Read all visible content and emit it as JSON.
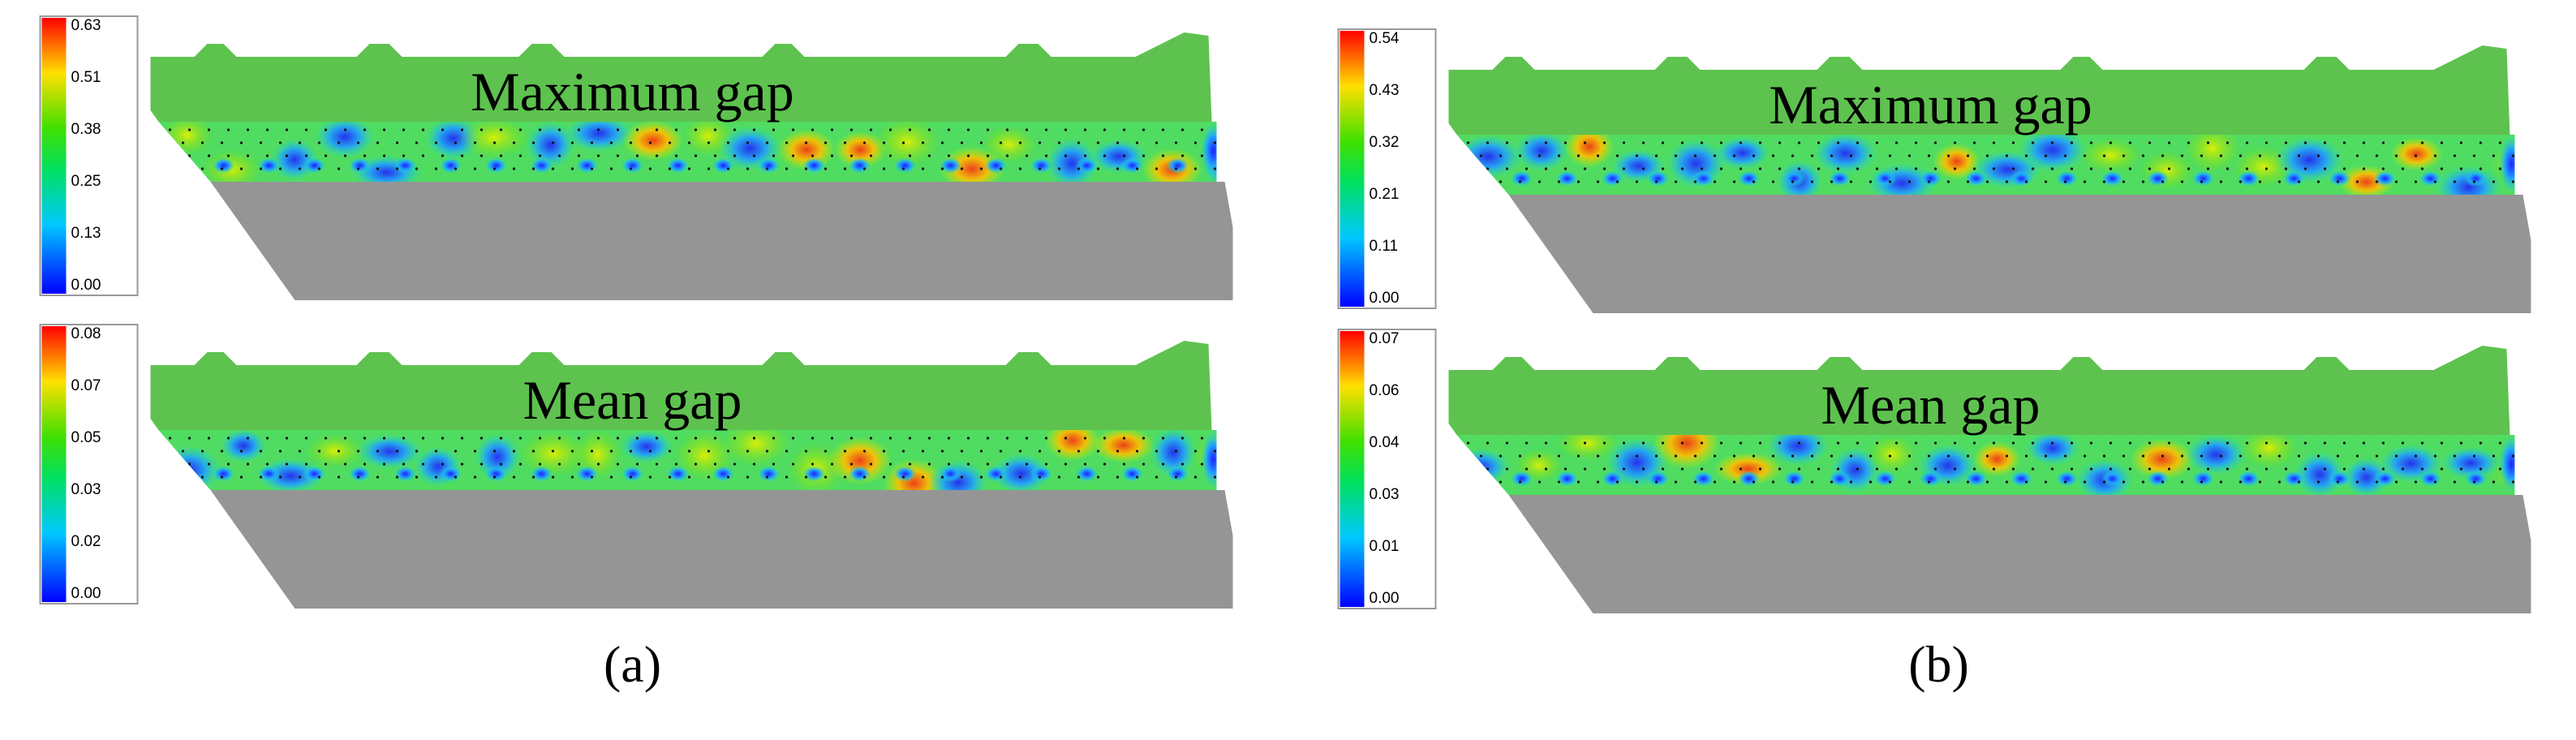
{
  "panels": [
    {
      "label": "(a)",
      "plots": [
        {
          "title": "Maximum gap",
          "colorbar_ticks": [
            "0.63",
            "0.51",
            "0.38",
            "0.25",
            "0.13",
            "0.00"
          ]
        },
        {
          "title": "Mean gap",
          "colorbar_ticks": [
            "0.08",
            "0.07",
            "0.05",
            "0.03",
            "0.02",
            "0.00"
          ]
        }
      ]
    },
    {
      "label": "(b)",
      "plots": [
        {
          "title": "Maximum gap",
          "colorbar_ticks": [
            "0.54",
            "0.43",
            "0.32",
            "0.21",
            "0.11",
            "0.00"
          ]
        },
        {
          "title": "Mean gap",
          "colorbar_ticks": [
            "0.07",
            "0.06",
            "0.04",
            "0.03",
            "0.01",
            "0.00"
          ]
        }
      ]
    }
  ]
}
